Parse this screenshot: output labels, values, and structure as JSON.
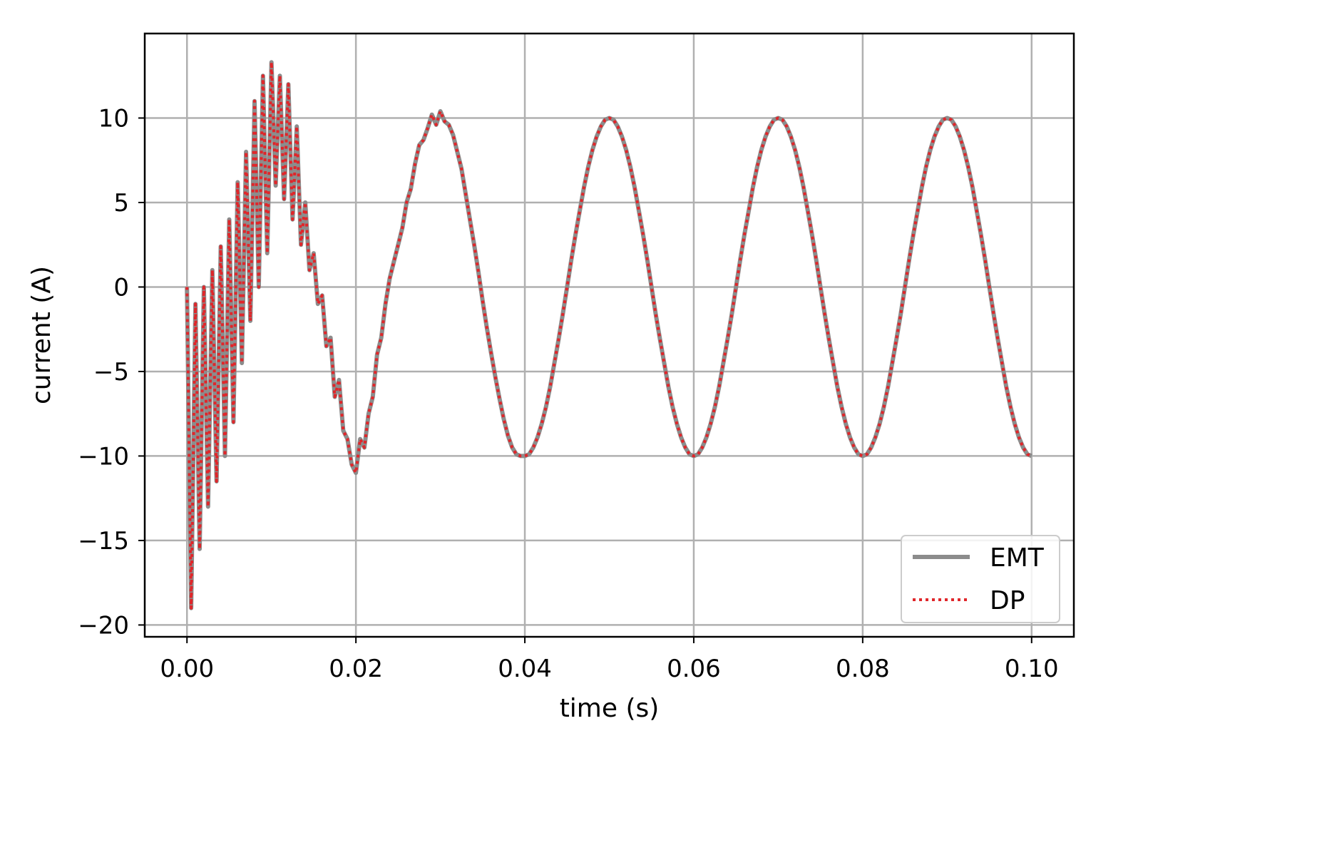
{
  "chart_data": {
    "type": "line",
    "title": "",
    "xlabel": "time (s)",
    "ylabel": "current (A)",
    "xlim": [
      -0.005,
      0.105
    ],
    "ylim": [
      -20.7,
      15.0
    ],
    "xticks": [
      0.0,
      0.02,
      0.04,
      0.06,
      0.08,
      0.1
    ],
    "xtick_labels": [
      "0.00",
      "0.02",
      "0.04",
      "0.06",
      "0.08",
      "0.10"
    ],
    "yticks": [
      10,
      5,
      0,
      -5,
      -10,
      -15,
      -20
    ],
    "ytick_labels": [
      "10",
      "5",
      "0",
      "−5",
      "−10",
      "−15",
      "−20"
    ],
    "grid": true,
    "legend_position": "lower-right",
    "colors": {
      "emt": "#8c8c8c",
      "dp": "#e0262a",
      "grid": "#b0b0b0"
    },
    "series": [
      {
        "name": "EMT",
        "style": "solid",
        "x": [
          0.0,
          0.0005,
          0.001,
          0.0015,
          0.002,
          0.0025,
          0.003,
          0.0035,
          0.004,
          0.0045,
          0.005,
          0.0055,
          0.006,
          0.0065,
          0.007,
          0.0075,
          0.008,
          0.0085,
          0.009,
          0.0095,
          0.01,
          0.0105,
          0.011,
          0.0115,
          0.012,
          0.0125,
          0.013,
          0.0135,
          0.014,
          0.0145,
          0.015,
          0.0155,
          0.016,
          0.0165,
          0.017,
          0.0175,
          0.018,
          0.0185,
          0.019,
          0.0195,
          0.02,
          0.0205,
          0.021,
          0.0215,
          0.022,
          0.0225,
          0.023,
          0.0235,
          0.024,
          0.0245,
          0.025,
          0.0255,
          0.026,
          0.0265,
          0.027,
          0.0275,
          0.028,
          0.0285,
          0.029,
          0.0295,
          0.03,
          0.0305,
          0.031,
          0.0315,
          0.032,
          0.0325,
          0.033,
          0.0335,
          0.034,
          0.0345,
          0.035,
          0.0355,
          0.036,
          0.0365,
          0.037,
          0.0375,
          0.038,
          0.0385,
          0.039,
          0.0395,
          0.04,
          0.0405,
          0.041,
          0.0415,
          0.042,
          0.0425,
          0.043,
          0.0435,
          0.044,
          0.0445,
          0.045,
          0.0455,
          0.046,
          0.0465,
          0.047,
          0.0475,
          0.048,
          0.0485,
          0.049,
          0.0495,
          0.05,
          0.0505,
          0.051,
          0.0515,
          0.052,
          0.0525,
          0.053,
          0.0535,
          0.054,
          0.0545,
          0.055,
          0.0555,
          0.056,
          0.0565,
          0.057,
          0.0575,
          0.058,
          0.0585,
          0.059,
          0.0595,
          0.06,
          0.0605,
          0.061,
          0.0615,
          0.062,
          0.0625,
          0.063,
          0.0635,
          0.064,
          0.0645,
          0.065,
          0.0655,
          0.066,
          0.0665,
          0.067,
          0.0675,
          0.068,
          0.0685,
          0.069,
          0.0695,
          0.07,
          0.0705,
          0.071,
          0.0715,
          0.072,
          0.0725,
          0.073,
          0.0735,
          0.074,
          0.0745,
          0.075,
          0.0755,
          0.076,
          0.0765,
          0.077,
          0.0775,
          0.078,
          0.0785,
          0.079,
          0.0795,
          0.08,
          0.0805,
          0.081,
          0.0815,
          0.082,
          0.0825,
          0.083,
          0.0835,
          0.084,
          0.0845,
          0.085,
          0.0855,
          0.086,
          0.0865,
          0.087,
          0.0875,
          0.088,
          0.0885,
          0.089,
          0.0895,
          0.09,
          0.0905,
          0.091,
          0.0915,
          0.092,
          0.0925,
          0.093,
          0.0935,
          0.094,
          0.0945,
          0.095,
          0.0955,
          0.096,
          0.0965,
          0.097,
          0.0975,
          0.098,
          0.0985,
          0.099,
          0.0995,
          0.1
        ],
        "y": [
          0.0,
          -19.0,
          -1.0,
          -15.5,
          0.0,
          -13.0,
          1.0,
          -11.5,
          2.4,
          -10.0,
          4.0,
          -8.0,
          6.2,
          -4.5,
          8.0,
          -2.0,
          11.0,
          0.0,
          12.5,
          2.0,
          13.3,
          6.0,
          12.5,
          5.2,
          12.0,
          4.0,
          9.5,
          2.5,
          5.0,
          1.0,
          2.0,
          -1.0,
          -0.5,
          -3.5,
          -3.0,
          -6.5,
          -5.5,
          -8.5,
          -9.0,
          -10.5,
          -11.0,
          -9.0,
          -9.5,
          -7.5,
          -6.5,
          -4.0,
          -3.0,
          -1.0,
          0.5,
          1.5,
          2.5,
          3.5,
          5.0,
          5.8,
          7.3,
          8.4,
          8.7,
          9.4,
          10.2,
          9.6,
          10.4,
          9.8,
          9.6,
          9.0,
          8.0,
          7.0,
          5.5,
          4.0,
          2.5,
          0.9,
          -0.8,
          -2.4,
          -3.9,
          -5.3,
          -6.6,
          -7.8,
          -8.8,
          -9.5,
          -9.9,
          -10.0,
          -10.0,
          -9.9,
          -9.5,
          -8.9,
          -8.1,
          -7.1,
          -5.9,
          -4.5,
          -3.1,
          -1.6,
          0.0,
          1.6,
          3.1,
          4.5,
          5.9,
          7.1,
          8.1,
          8.9,
          9.5,
          9.9,
          10.0,
          9.9,
          9.5,
          8.9,
          8.1,
          7.1,
          5.9,
          4.5,
          3.1,
          1.6,
          0.0,
          -1.6,
          -3.1,
          -4.5,
          -5.9,
          -7.1,
          -8.1,
          -8.9,
          -9.5,
          -9.9,
          -10.0,
          -9.9,
          -9.5,
          -8.9,
          -8.1,
          -7.1,
          -5.9,
          -4.5,
          -3.1,
          -1.6,
          0.0,
          1.6,
          3.1,
          4.5,
          5.9,
          7.1,
          8.1,
          8.9,
          9.5,
          9.9,
          10.0,
          9.9,
          9.5,
          8.9,
          8.1,
          7.1,
          5.9,
          4.5,
          3.1,
          1.6,
          0.0,
          -1.6,
          -3.1,
          -4.5,
          -5.9,
          -7.1,
          -8.1,
          -8.9,
          -9.5,
          -9.9,
          -10.0,
          -9.9,
          -9.5,
          -8.9,
          -8.1,
          -7.1,
          -5.9,
          -4.5,
          -3.1,
          -1.6,
          0.0,
          1.6,
          3.1,
          4.5,
          5.9,
          7.1,
          8.1,
          8.9,
          9.5,
          9.9,
          10.0,
          9.9,
          9.5,
          8.9,
          8.1,
          7.1,
          5.9,
          4.5,
          3.1,
          1.6,
          0.0,
          -1.6,
          -3.1,
          -4.5,
          -5.9,
          -7.1,
          -8.1,
          -8.9,
          -9.5,
          -9.9,
          -10.0
        ]
      },
      {
        "name": "DP",
        "style": "dotted",
        "x": [
          0.0,
          0.0005,
          0.001,
          0.0015,
          0.002,
          0.0025,
          0.003,
          0.0035,
          0.004,
          0.0045,
          0.005,
          0.0055,
          0.006,
          0.0065,
          0.007,
          0.0075,
          0.008,
          0.0085,
          0.009,
          0.0095,
          0.01,
          0.0105,
          0.011,
          0.0115,
          0.012,
          0.0125,
          0.013,
          0.0135,
          0.014,
          0.0145,
          0.015,
          0.0155,
          0.016,
          0.0165,
          0.017,
          0.0175,
          0.018,
          0.0185,
          0.019,
          0.0195,
          0.02,
          0.0205,
          0.021,
          0.0215,
          0.022,
          0.0225,
          0.023,
          0.0235,
          0.024,
          0.0245,
          0.025,
          0.0255,
          0.026,
          0.0265,
          0.027,
          0.0275,
          0.028,
          0.0285,
          0.029,
          0.0295,
          0.03,
          0.0305,
          0.031,
          0.0315,
          0.032,
          0.0325,
          0.033,
          0.0335,
          0.034,
          0.0345,
          0.035,
          0.0355,
          0.036,
          0.0365,
          0.037,
          0.0375,
          0.038,
          0.0385,
          0.039,
          0.0395,
          0.04,
          0.0405,
          0.041,
          0.0415,
          0.042,
          0.0425,
          0.043,
          0.0435,
          0.044,
          0.0445,
          0.045,
          0.0455,
          0.046,
          0.0465,
          0.047,
          0.0475,
          0.048,
          0.0485,
          0.049,
          0.0495,
          0.05,
          0.0505,
          0.051,
          0.0515,
          0.052,
          0.0525,
          0.053,
          0.0535,
          0.054,
          0.0545,
          0.055,
          0.0555,
          0.056,
          0.0565,
          0.057,
          0.0575,
          0.058,
          0.0585,
          0.059,
          0.0595,
          0.06,
          0.0605,
          0.061,
          0.0615,
          0.062,
          0.0625,
          0.063,
          0.0635,
          0.064,
          0.0645,
          0.065,
          0.0655,
          0.066,
          0.0665,
          0.067,
          0.0675,
          0.068,
          0.0685,
          0.069,
          0.0695,
          0.07,
          0.0705,
          0.071,
          0.0715,
          0.072,
          0.0725,
          0.073,
          0.0735,
          0.074,
          0.0745,
          0.075,
          0.0755,
          0.076,
          0.0765,
          0.077,
          0.0775,
          0.078,
          0.0785,
          0.079,
          0.0795,
          0.08,
          0.0805,
          0.081,
          0.0815,
          0.082,
          0.0825,
          0.083,
          0.0835,
          0.084,
          0.0845,
          0.085,
          0.0855,
          0.086,
          0.0865,
          0.087,
          0.0875,
          0.088,
          0.0885,
          0.089,
          0.0895,
          0.09,
          0.0905,
          0.091,
          0.0915,
          0.092,
          0.0925,
          0.093,
          0.0935,
          0.094,
          0.0945,
          0.095,
          0.0955,
          0.096,
          0.0965,
          0.097,
          0.0975,
          0.098,
          0.0985,
          0.099,
          0.0995,
          0.1
        ],
        "y": [
          0.0,
          -19.0,
          -1.0,
          -15.5,
          0.0,
          -13.0,
          1.0,
          -11.5,
          2.4,
          -10.0,
          4.0,
          -8.0,
          6.2,
          -4.5,
          8.0,
          -2.0,
          11.0,
          0.0,
          12.5,
          2.0,
          13.3,
          6.0,
          12.5,
          5.2,
          12.0,
          4.0,
          9.5,
          2.5,
          5.0,
          1.0,
          2.0,
          -1.0,
          -0.5,
          -3.5,
          -3.0,
          -6.5,
          -5.5,
          -8.5,
          -9.0,
          -10.5,
          -11.0,
          -9.0,
          -9.5,
          -7.5,
          -6.5,
          -4.0,
          -3.0,
          -1.0,
          0.5,
          1.5,
          2.5,
          3.5,
          5.0,
          5.8,
          7.3,
          8.4,
          8.7,
          9.4,
          10.2,
          9.6,
          10.4,
          9.8,
          9.6,
          9.0,
          8.0,
          7.0,
          5.5,
          4.0,
          2.5,
          0.9,
          -0.8,
          -2.4,
          -3.9,
          -5.3,
          -6.6,
          -7.8,
          -8.8,
          -9.5,
          -9.9,
          -10.0,
          -10.0,
          -9.9,
          -9.5,
          -8.9,
          -8.1,
          -7.1,
          -5.9,
          -4.5,
          -3.1,
          -1.6,
          0.0,
          1.6,
          3.1,
          4.5,
          5.9,
          7.1,
          8.1,
          8.9,
          9.5,
          9.9,
          10.0,
          9.9,
          9.5,
          8.9,
          8.1,
          7.1,
          5.9,
          4.5,
          3.1,
          1.6,
          0.0,
          -1.6,
          -3.1,
          -4.5,
          -5.9,
          -7.1,
          -8.1,
          -8.9,
          -9.5,
          -9.9,
          -10.0,
          -9.9,
          -9.5,
          -8.9,
          -8.1,
          -7.1,
          -5.9,
          -4.5,
          -3.1,
          -1.6,
          0.0,
          1.6,
          3.1,
          4.5,
          5.9,
          7.1,
          8.1,
          8.9,
          9.5,
          9.9,
          10.0,
          9.9,
          9.5,
          8.9,
          8.1,
          7.1,
          5.9,
          4.5,
          3.1,
          1.6,
          0.0,
          -1.6,
          -3.1,
          -4.5,
          -5.9,
          -7.1,
          -8.1,
          -8.9,
          -9.5,
          -9.9,
          -10.0,
          -9.9,
          -9.5,
          -8.9,
          -8.1,
          -7.1,
          -5.9,
          -4.5,
          -3.1,
          -1.6,
          0.0,
          1.6,
          3.1,
          4.5,
          5.9,
          7.1,
          8.1,
          8.9,
          9.5,
          9.9,
          10.0,
          9.9,
          9.5,
          8.9,
          8.1,
          7.1,
          5.9,
          4.5,
          3.1,
          1.6,
          0.0,
          -1.6,
          -3.1,
          -4.5,
          -5.9,
          -7.1,
          -8.1,
          -8.9,
          -9.5,
          -9.9,
          -10.0
        ]
      }
    ]
  }
}
